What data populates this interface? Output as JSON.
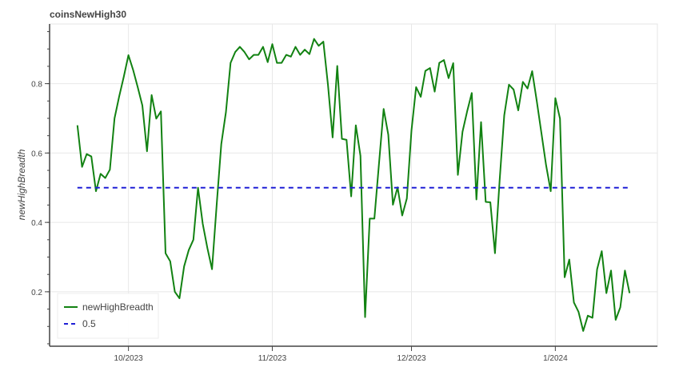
{
  "chart_data": {
    "type": "line",
    "title": "coinsNewHigh30",
    "xlabel": "",
    "ylabel": "newHighBreadth",
    "ylim": [
      0.043,
      0.972
    ],
    "xlim": [
      "2023-09-14",
      "2024-01-23"
    ],
    "grid": true,
    "legend_position": "bottom-left",
    "x_ticks": [
      {
        "date": "2023-10-01",
        "label": "10/2023"
      },
      {
        "date": "2023-11-01",
        "label": "11/2023"
      },
      {
        "date": "2023-12-01",
        "label": "12/2023"
      },
      {
        "date": "2024-01-01",
        "label": "1/2024"
      }
    ],
    "y_ticks": [
      {
        "value": 0.2,
        "label": "0.2"
      },
      {
        "value": 0.4,
        "label": "0.4"
      },
      {
        "value": 0.6,
        "label": "0.6"
      },
      {
        "value": 0.8,
        "label": "0.8"
      }
    ],
    "series": [
      {
        "name": "newHighBreadth",
        "color": "#128212",
        "style": "solid",
        "x": [
          "2023-09-20",
          "2023-09-21",
          "2023-09-22",
          "2023-09-23",
          "2023-09-24",
          "2023-09-25",
          "2023-09-26",
          "2023-09-27",
          "2023-09-28",
          "2023-09-29",
          "2023-09-30",
          "2023-10-01",
          "2023-10-02",
          "2023-10-03",
          "2023-10-04",
          "2023-10-05",
          "2023-10-06",
          "2023-10-07",
          "2023-10-08",
          "2023-10-09",
          "2023-10-10",
          "2023-10-11",
          "2023-10-12",
          "2023-10-13",
          "2023-10-14",
          "2023-10-15",
          "2023-10-16",
          "2023-10-17",
          "2023-10-18",
          "2023-10-19",
          "2023-10-20",
          "2023-10-21",
          "2023-10-22",
          "2023-10-23",
          "2023-10-24",
          "2023-10-25",
          "2023-10-26",
          "2023-10-27",
          "2023-10-28",
          "2023-10-29",
          "2023-10-30",
          "2023-10-31",
          "2023-11-01",
          "2023-11-02",
          "2023-11-03",
          "2023-11-04",
          "2023-11-05",
          "2023-11-06",
          "2023-11-07",
          "2023-11-08",
          "2023-11-09",
          "2023-11-10",
          "2023-11-11",
          "2023-11-12",
          "2023-11-13",
          "2023-11-14",
          "2023-11-15",
          "2023-11-16",
          "2023-11-17",
          "2023-11-18",
          "2023-11-19",
          "2023-11-20",
          "2023-11-21",
          "2023-11-22",
          "2023-11-23",
          "2023-11-24",
          "2023-11-25",
          "2023-11-26",
          "2023-11-27",
          "2023-11-28",
          "2023-11-29",
          "2023-11-30",
          "2023-12-01",
          "2023-12-02",
          "2023-12-03",
          "2023-12-04",
          "2023-12-05",
          "2023-12-06",
          "2023-12-07",
          "2023-12-08",
          "2023-12-09",
          "2023-12-10",
          "2023-12-11",
          "2023-12-12",
          "2023-12-13",
          "2023-12-14",
          "2023-12-15",
          "2023-12-16",
          "2023-12-17",
          "2023-12-18",
          "2023-12-19",
          "2023-12-20",
          "2023-12-21",
          "2023-12-22",
          "2023-12-23",
          "2023-12-24",
          "2023-12-25",
          "2023-12-26",
          "2023-12-27",
          "2023-12-28",
          "2023-12-29",
          "2023-12-30",
          "2023-12-31",
          "2024-01-01",
          "2024-01-02",
          "2024-01-03",
          "2024-01-04",
          "2024-01-05",
          "2024-01-06",
          "2024-01-07",
          "2024-01-08",
          "2024-01-09",
          "2024-01-10",
          "2024-01-11",
          "2024-01-12",
          "2024-01-13",
          "2024-01-14",
          "2024-01-15",
          "2024-01-16",
          "2024-01-17"
        ],
        "values": [
          0.68,
          0.56,
          0.597,
          0.59,
          0.49,
          0.54,
          0.528,
          0.552,
          0.7,
          0.763,
          0.82,
          0.882,
          0.84,
          0.79,
          0.737,
          0.605,
          0.767,
          0.699,
          0.72,
          0.311,
          0.288,
          0.2,
          0.181,
          0.273,
          0.32,
          0.35,
          0.5,
          0.396,
          0.326,
          0.265,
          0.45,
          0.626,
          0.718,
          0.86,
          0.891,
          0.906,
          0.891,
          0.87,
          0.883,
          0.883,
          0.906,
          0.862,
          0.914,
          0.86,
          0.86,
          0.883,
          0.878,
          0.906,
          0.883,
          0.898,
          0.885,
          0.929,
          0.909,
          0.921,
          0.796,
          0.645,
          0.851,
          0.641,
          0.638,
          0.475,
          0.68,
          0.592,
          0.127,
          0.411,
          0.411,
          0.57,
          0.727,
          0.653,
          0.451,
          0.501,
          0.42,
          0.469,
          0.665,
          0.79,
          0.762,
          0.837,
          0.845,
          0.777,
          0.86,
          0.868,
          0.816,
          0.859,
          0.537,
          0.661,
          0.72,
          0.773,
          0.466,
          0.689,
          0.459,
          0.458,
          0.311,
          0.52,
          0.709,
          0.797,
          0.783,
          0.723,
          0.805,
          0.786,
          0.836,
          0.749,
          0.657,
          0.565,
          0.49,
          0.758,
          0.699,
          0.242,
          0.293,
          0.169,
          0.142,
          0.087,
          0.131,
          0.125,
          0.265,
          0.317,
          0.196,
          0.261,
          0.119,
          0.155,
          0.261,
          0.196
        ]
      },
      {
        "name": "0.5",
        "color": "#1f1fd6",
        "style": "dashed",
        "x": [
          "2023-09-20",
          "2024-01-17"
        ],
        "values": [
          0.5,
          0.5
        ]
      }
    ]
  }
}
